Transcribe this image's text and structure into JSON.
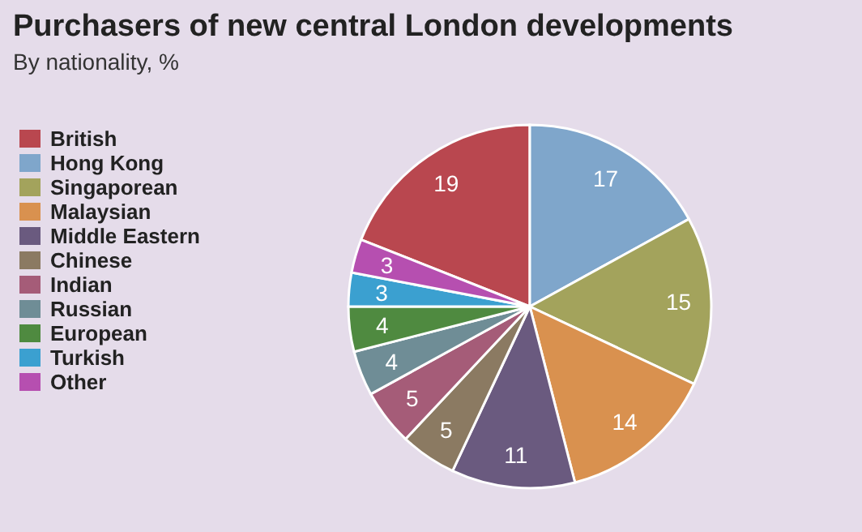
{
  "chart_data": {
    "type": "pie",
    "title": "Purchasers of new central London developments",
    "subtitle": "By nationality, %",
    "categories": [
      "British",
      "Hong Kong",
      "Singaporean",
      "Malaysian",
      "Middle Eastern",
      "Chinese",
      "Indian",
      "Russian",
      "European",
      "Turkish",
      "Other"
    ],
    "values": [
      19,
      17,
      15,
      14,
      11,
      5,
      5,
      4,
      4,
      3,
      3
    ],
    "colors": [
      "#b9474f",
      "#7fa6cb",
      "#a3a35c",
      "#d9914f",
      "#6a5a7f",
      "#8b7a62",
      "#a55c78",
      "#6f8d96",
      "#4f8a40",
      "#3ba0d0",
      "#b64fb0"
    ],
    "data_labels": true,
    "legend": "left"
  }
}
